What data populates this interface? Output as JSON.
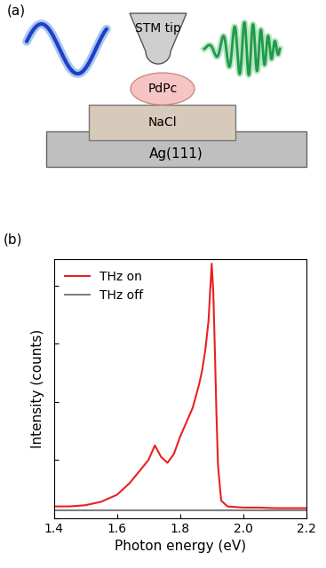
{
  "diagram": {
    "panel": "(a)",
    "labels": {
      "tip": "STM tip",
      "molecule": "PdPc",
      "insulator": "NaCl",
      "substrate": "Ag(111)"
    }
  },
  "chart_data": {
    "type": "line",
    "panel": "(b)",
    "x_label": "Photon energy (eV)",
    "y_label": "Intensity (counts)",
    "x": [
      1.4,
      1.45,
      1.5,
      1.55,
      1.6,
      1.64,
      1.67,
      1.7,
      1.72,
      1.74,
      1.76,
      1.78,
      1.8,
      1.82,
      1.84,
      1.86,
      1.87,
      1.88,
      1.89,
      1.895,
      1.9,
      1.905,
      1.91,
      1.915,
      1.92,
      1.93,
      1.95,
      2.0,
      2.05,
      2.1,
      2.15,
      2.2
    ],
    "series": [
      {
        "name": "THz on",
        "color": "#e8211f",
        "values": [
          0.2,
          0.2,
          0.22,
          0.28,
          0.4,
          0.6,
          0.8,
          1.0,
          1.25,
          1.05,
          0.95,
          1.1,
          1.4,
          1.65,
          1.9,
          2.3,
          2.55,
          2.9,
          3.4,
          3.9,
          4.38,
          3.9,
          2.9,
          1.8,
          0.9,
          0.3,
          0.2,
          0.18,
          0.18,
          0.17,
          0.17,
          0.17
        ]
      },
      {
        "name": "THz off",
        "color": "#808080",
        "values": [
          0.13,
          0.13,
          0.13,
          0.13,
          0.13,
          0.13,
          0.13,
          0.13,
          0.13,
          0.13,
          0.13,
          0.13,
          0.13,
          0.13,
          0.13,
          0.13,
          0.13,
          0.13,
          0.13,
          0.13,
          0.13,
          0.13,
          0.13,
          0.13,
          0.13,
          0.13,
          0.13,
          0.13,
          0.13,
          0.13,
          0.13,
          0.13
        ]
      }
    ],
    "xlim": [
      1.4,
      2.2
    ],
    "xticks": [
      1.4,
      1.6,
      1.8,
      2.0,
      2.2
    ],
    "ylim": [
      0,
      4.45
    ],
    "yticks": [
      0,
      1,
      2,
      3,
      4
    ],
    "tick_labels": "x",
    "legend": "upper left",
    "grid": false
  }
}
